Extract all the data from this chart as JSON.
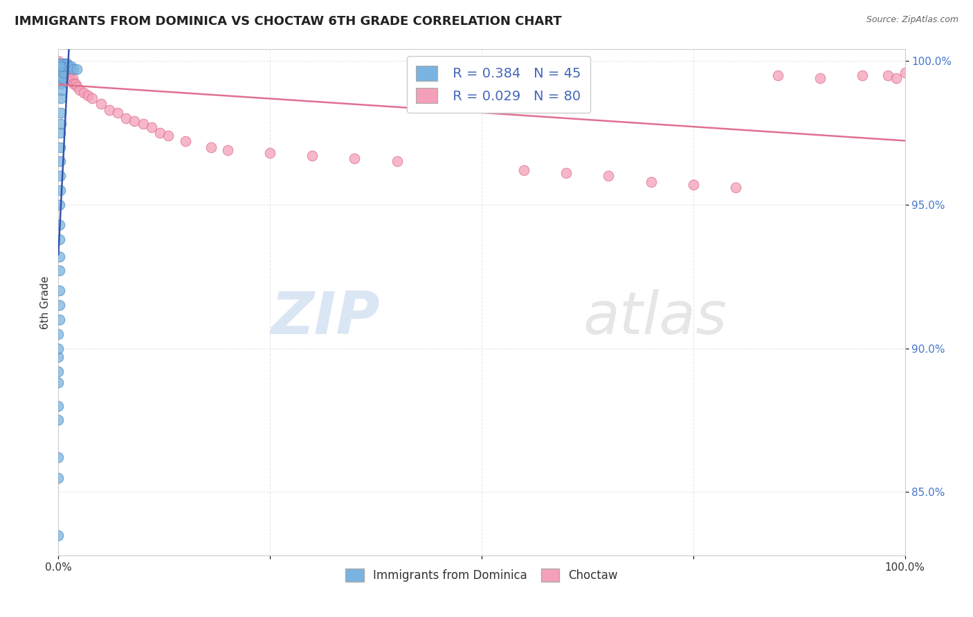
{
  "title": "IMMIGRANTS FROM DOMINICA VS CHOCTAW 6TH GRADE CORRELATION CHART",
  "source": "Source: ZipAtlas.com",
  "ylabel": "6th Grade",
  "watermark_zip": "ZIP",
  "watermark_atlas": "atlas",
  "legend_blue_r": "R = 0.384",
  "legend_blue_n": "N = 45",
  "legend_pink_r": "R = 0.029",
  "legend_pink_n": "N = 80",
  "blue_color": "#7ab3e0",
  "blue_edge_color": "#5a8ec0",
  "pink_color": "#f4a0b8",
  "pink_edge_color": "#e07090",
  "trend_blue_color": "#3355aa",
  "trend_pink_color": "#e07090",
  "xlim": [
    0.0,
    1.0
  ],
  "ylim": [
    0.828,
    1.004
  ],
  "xtick_labels": [
    "0.0%",
    "",
    "",
    "",
    "100.0%"
  ],
  "ytick_labels": [
    "85.0%",
    "90.0%",
    "95.0%",
    "100.0%"
  ],
  "ytick_vals": [
    0.85,
    0.9,
    0.95,
    1.0
  ],
  "marker_size": 110,
  "grid_color": "#e8e8e8",
  "background_color": "#ffffff",
  "title_color": "#222222",
  "source_color": "#666666",
  "axis_label_color": "#333333",
  "ytick_color": "#4477cc",
  "xtick_color": "#333333",
  "bottom_legend_color": "#333333",
  "blue_x": [
    0.0,
    0.0,
    0.0,
    0.0,
    0.0,
    0.0,
    0.0,
    0.0,
    0.0,
    0.0,
    0.001,
    0.001,
    0.001,
    0.001,
    0.001,
    0.001,
    0.001,
    0.001,
    0.002,
    0.002,
    0.002,
    0.002,
    0.002,
    0.003,
    0.003,
    0.003,
    0.003,
    0.004,
    0.004,
    0.004,
    0.005,
    0.005,
    0.006,
    0.006,
    0.007,
    0.008,
    0.009,
    0.01,
    0.012,
    0.015,
    0.018,
    0.022,
    0.0,
    0.001,
    0.002
  ],
  "blue_y": [
    0.835,
    0.855,
    0.862,
    0.875,
    0.88,
    0.888,
    0.892,
    0.897,
    0.9,
    0.905,
    0.91,
    0.915,
    0.92,
    0.927,
    0.932,
    0.938,
    0.943,
    0.95,
    0.955,
    0.96,
    0.965,
    0.97,
    0.975,
    0.978,
    0.982,
    0.987,
    0.992,
    0.99,
    0.994,
    0.997,
    0.994,
    0.998,
    0.996,
    0.999,
    0.998,
    0.999,
    0.999,
    0.999,
    0.998,
    0.998,
    0.997,
    0.997,
    0.999,
    0.999,
    0.998
  ],
  "pink_x": [
    0.0,
    0.0,
    0.0,
    0.0,
    0.0,
    0.001,
    0.001,
    0.001,
    0.001,
    0.001,
    0.002,
    0.002,
    0.002,
    0.002,
    0.002,
    0.003,
    0.003,
    0.003,
    0.003,
    0.004,
    0.004,
    0.004,
    0.004,
    0.005,
    0.005,
    0.005,
    0.006,
    0.006,
    0.007,
    0.007,
    0.008,
    0.008,
    0.009,
    0.01,
    0.011,
    0.012,
    0.013,
    0.014,
    0.015,
    0.016,
    0.017,
    0.018,
    0.02,
    0.022,
    0.025,
    0.03,
    0.035,
    0.04,
    0.05,
    0.06,
    0.07,
    0.08,
    0.09,
    0.1,
    0.11,
    0.12,
    0.13,
    0.15,
    0.18,
    0.2,
    0.25,
    0.3,
    0.35,
    0.4,
    0.55,
    0.6,
    0.65,
    0.7,
    0.75,
    0.8,
    0.85,
    0.9,
    0.95,
    0.98,
    0.99,
    1.0,
    0.001,
    0.002,
    0.003,
    0.004
  ],
  "pink_y": [
    0.997,
    0.998,
    0.999,
    0.999,
    1.0,
    0.997,
    0.997,
    0.998,
    0.998,
    0.999,
    0.996,
    0.997,
    0.997,
    0.998,
    0.999,
    0.996,
    0.997,
    0.997,
    0.998,
    0.996,
    0.996,
    0.997,
    0.998,
    0.996,
    0.997,
    0.998,
    0.995,
    0.997,
    0.996,
    0.997,
    0.995,
    0.997,
    0.996,
    0.995,
    0.996,
    0.995,
    0.996,
    0.994,
    0.993,
    0.993,
    0.994,
    0.992,
    0.992,
    0.991,
    0.99,
    0.989,
    0.988,
    0.987,
    0.985,
    0.983,
    0.982,
    0.98,
    0.979,
    0.978,
    0.977,
    0.975,
    0.974,
    0.972,
    0.97,
    0.969,
    0.968,
    0.967,
    0.966,
    0.965,
    0.962,
    0.961,
    0.96,
    0.958,
    0.957,
    0.956,
    0.995,
    0.994,
    0.995,
    0.995,
    0.994,
    0.996,
    0.997,
    0.996,
    0.995,
    0.996
  ]
}
